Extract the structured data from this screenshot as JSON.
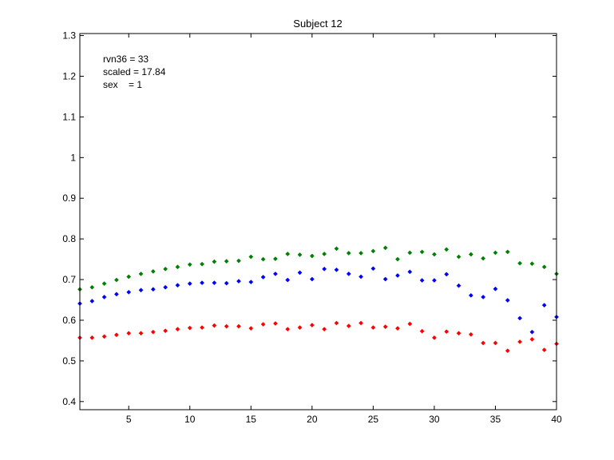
{
  "chart_data": {
    "type": "scatter",
    "title": "Subject 12",
    "xlabel": "",
    "ylabel": "",
    "xlim": [
      1,
      40
    ],
    "ylim": [
      0.38,
      1.305
    ],
    "xticks": [
      5,
      10,
      15,
      20,
      25,
      30,
      35,
      40
    ],
    "yticks": [
      0.4,
      0.5,
      0.6,
      0.7,
      0.8,
      0.9,
      1,
      1.1,
      1.2,
      1.3
    ],
    "grid": false,
    "legend": "none",
    "annotations": [
      "rvn36 = 33",
      "scaled = 17.84",
      "sex    = 1"
    ],
    "x": [
      1,
      2,
      3,
      4,
      5,
      6,
      7,
      8,
      9,
      10,
      11,
      12,
      13,
      14,
      15,
      16,
      17,
      18,
      19,
      20,
      21,
      22,
      23,
      24,
      25,
      26,
      27,
      28,
      29,
      30,
      31,
      32,
      33,
      34,
      35,
      36,
      37,
      38,
      39,
      40
    ],
    "series": [
      {
        "color": "#008000",
        "values": [
          0.676,
          0.681,
          0.69,
          0.699,
          0.707,
          0.714,
          0.72,
          0.726,
          0.731,
          0.737,
          0.738,
          0.744,
          0.745,
          0.746,
          0.756,
          0.75,
          0.751,
          0.763,
          0.761,
          0.758,
          0.763,
          0.776,
          0.765,
          0.765,
          0.77,
          0.778,
          0.75,
          0.766,
          0.768,
          0.762,
          0.774,
          0.756,
          0.762,
          0.752,
          0.766,
          0.768,
          0.74,
          0.739,
          0.731,
          0.714
        ]
      },
      {
        "color": "#0000ff",
        "values": [
          0.641,
          0.647,
          0.657,
          0.664,
          0.669,
          0.674,
          0.676,
          0.681,
          0.686,
          0.69,
          0.692,
          0.692,
          0.691,
          0.696,
          0.694,
          0.706,
          0.714,
          0.699,
          0.717,
          0.701,
          0.726,
          0.724,
          0.714,
          0.707,
          0.727,
          0.701,
          0.71,
          0.719,
          0.698,
          0.698,
          0.713,
          0.685,
          0.661,
          0.657,
          0.677,
          0.649,
          0.605,
          0.571,
          0.637,
          0.608
        ]
      },
      {
        "color": "#ff0000",
        "values": [
          0.557,
          0.557,
          0.56,
          0.564,
          0.568,
          0.568,
          0.571,
          0.574,
          0.578,
          0.581,
          0.582,
          0.587,
          0.585,
          0.585,
          0.58,
          0.59,
          0.592,
          0.578,
          0.582,
          0.588,
          0.578,
          0.593,
          0.586,
          0.593,
          0.582,
          0.584,
          0.58,
          0.591,
          0.573,
          0.557,
          0.572,
          0.568,
          0.565,
          0.544,
          0.544,
          0.525,
          0.547,
          0.553,
          0.527,
          0.542
        ]
      }
    ]
  }
}
